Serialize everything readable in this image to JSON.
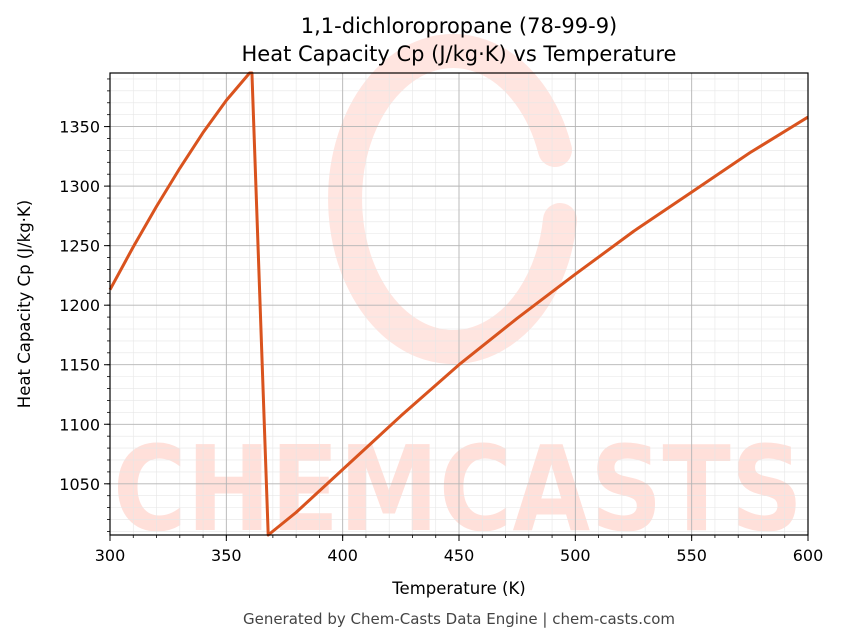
{
  "chart_data": {
    "type": "line",
    "title": "1,1-dichloropropane (78-99-9)",
    "subtitle": "Heat Capacity Cp (J/kg·K) vs Temperature",
    "xlabel": "Temperature (K)",
    "ylabel": "Heat Capacity Cp (J/kg·K)",
    "xlim": [
      300,
      600
    ],
    "ylim": [
      1007,
      1395
    ],
    "xticks": [
      300,
      350,
      400,
      450,
      500,
      550,
      600
    ],
    "yticks": [
      1050,
      1100,
      1150,
      1200,
      1250,
      1300,
      1350
    ],
    "grid": true,
    "line_color": "#d9531e",
    "series": [
      {
        "x": [
          300,
          310,
          320,
          330,
          340,
          350,
          360,
          361,
          368,
          380,
          400,
          425,
          450,
          475,
          500,
          525,
          550,
          575,
          600
        ],
        "values": [
          1213,
          1249,
          1283,
          1315,
          1345,
          1372,
          1395,
          1395,
          1007,
          1026,
          1062,
          1107,
          1150,
          1189,
          1226,
          1262,
          1295,
          1328,
          1358
        ]
      }
    ]
  },
  "watermark": {
    "text": "CHEMCASTS",
    "color": "#ffe0da"
  },
  "footer": "Generated by Chem-Casts Data Engine | chem-casts.com"
}
